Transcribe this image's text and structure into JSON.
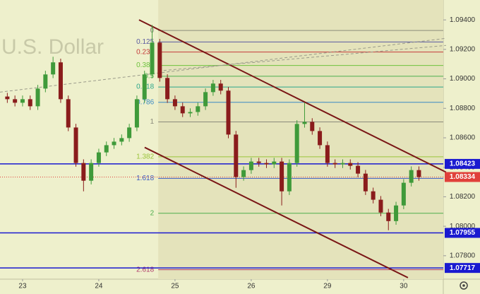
{
  "chart_data": {
    "type": "candlestick",
    "watermark": "U.S. Dollar",
    "xlim": [
      -2.96,
      55.2
    ],
    "ylim": [
      1.07641,
      1.09535
    ],
    "xticks": [
      {
        "value": 0,
        "label": "23"
      },
      {
        "value": 10,
        "label": "24"
      },
      {
        "value": 20,
        "label": "25"
      },
      {
        "value": 30,
        "label": "26"
      },
      {
        "value": 40,
        "label": "29"
      },
      {
        "value": 50,
        "label": "30"
      }
    ],
    "yticks": [
      {
        "value": 1.078,
        "label": "1.07800"
      },
      {
        "value": 1.08,
        "label": "1.08000"
      },
      {
        "value": 1.082,
        "label": "1.08200"
      },
      {
        "value": 1.084,
        "label": "1.08400"
      },
      {
        "value": 1.086,
        "label": "1.08600"
      },
      {
        "value": 1.088,
        "label": "1.08800"
      },
      {
        "value": 1.09,
        "label": "1.09000"
      },
      {
        "value": 1.092,
        "label": "1.09200"
      },
      {
        "value": 1.094,
        "label": "1.09400"
      }
    ],
    "up_color": "#3f9a3a",
    "down_color": "#8a1c1c",
    "candles": {
      "x": [
        -2,
        -1,
        0,
        1,
        2,
        3,
        4,
        5,
        6,
        7,
        8,
        9,
        10,
        11,
        12,
        13,
        14,
        15,
        16,
        17,
        18,
        19,
        20,
        21,
        22,
        23,
        24,
        25,
        26,
        27,
        28,
        29,
        30,
        31,
        32,
        33,
        34,
        35,
        36,
        37,
        38,
        39,
        40,
        41,
        42,
        43,
        44,
        45,
        46,
        47,
        48,
        49,
        50,
        51,
        52
      ],
      "open": [
        1.0888,
        1.08862,
        1.08838,
        1.08862,
        1.08814,
        1.08934,
        1.0903,
        1.09112,
        1.08862,
        1.0867,
        1.08429,
        1.08309,
        1.08429,
        1.08501,
        1.0855,
        1.08574,
        1.08598,
        1.0867,
        1.08862,
        1.0903,
        1.09246,
        1.09006,
        1.08862,
        1.08814,
        1.08766,
        1.08775,
        1.08814,
        1.0891,
        1.08968,
        1.0892,
        1.08622,
        1.08334,
        1.08381,
        1.08439,
        1.08429,
        1.0842,
        1.08439,
        1.08237,
        1.08429,
        1.08694,
        1.08708,
        1.08646,
        1.0855,
        1.08429,
        1.0842,
        1.08429,
        1.0841,
        1.08357,
        1.08237,
        1.0818,
        1.08093,
        1.08035,
        1.08141,
        1.08295,
        1.08381
      ],
      "high": [
        1.08905,
        1.08887,
        1.08887,
        1.08887,
        1.08959,
        1.09055,
        1.0915,
        1.09137,
        1.08887,
        1.08695,
        1.08454,
        1.08454,
        1.08526,
        1.08575,
        1.08599,
        1.08623,
        1.08695,
        1.08887,
        1.09055,
        1.09366,
        1.09271,
        1.09031,
        1.08887,
        1.08839,
        1.088,
        1.08839,
        1.08935,
        1.08993,
        1.08993,
        1.08945,
        1.08647,
        1.08406,
        1.08464,
        1.08464,
        1.08454,
        1.08464,
        1.08464,
        1.08454,
        1.08719,
        1.08838,
        1.08733,
        1.08671,
        1.08575,
        1.08454,
        1.08454,
        1.08454,
        1.08435,
        1.08382,
        1.08262,
        1.08205,
        1.08118,
        1.08166,
        1.0832,
        1.08406,
        1.08406
      ],
      "low": [
        1.08837,
        1.08813,
        1.08813,
        1.08789,
        1.08789,
        1.08909,
        1.09005,
        1.08837,
        1.08645,
        1.08404,
        1.08237,
        1.08284,
        1.08404,
        1.08476,
        1.08525,
        1.08549,
        1.08573,
        1.08645,
        1.08837,
        1.09005,
        1.08981,
        1.08837,
        1.08789,
        1.08741,
        1.08741,
        1.0875,
        1.08789,
        1.08885,
        1.08895,
        1.08597,
        1.08261,
        1.08309,
        1.08356,
        1.08404,
        1.08395,
        1.08395,
        1.08141,
        1.08212,
        1.08404,
        1.08669,
        1.08621,
        1.08525,
        1.08404,
        1.08395,
        1.08395,
        1.08385,
        1.08332,
        1.08212,
        1.08155,
        1.08068,
        1.07973,
        1.0801,
        1.08116,
        1.0827,
        1.08309
      ],
      "close": [
        1.08862,
        1.08838,
        1.08862,
        1.08814,
        1.08934,
        1.0903,
        1.09112,
        1.08862,
        1.0867,
        1.08429,
        1.08309,
        1.08429,
        1.08501,
        1.0855,
        1.08574,
        1.08598,
        1.0867,
        1.08862,
        1.0903,
        1.09246,
        1.09006,
        1.08862,
        1.08814,
        1.08766,
        1.08775,
        1.08814,
        1.0891,
        1.08968,
        1.0892,
        1.08622,
        1.08334,
        1.08381,
        1.08439,
        1.08429,
        1.0842,
        1.08439,
        1.08237,
        1.08429,
        1.08694,
        1.08708,
        1.08646,
        1.0855,
        1.08429,
        1.0842,
        1.08429,
        1.0841,
        1.08357,
        1.08237,
        1.0818,
        1.08093,
        1.08035,
        1.08141,
        1.08295,
        1.08381,
        1.08334
      ]
    },
    "fib": {
      "x0": 17.8,
      "start": 1.09328,
      "end": 1.08708,
      "levels": [
        {
          "value": 0,
          "color": "#8a8a7a"
        },
        {
          "value": 0.125,
          "color": "#5a5aa0"
        },
        {
          "value": 0.236,
          "color": "#c43a3a"
        },
        {
          "value": 0.382,
          "color": "#6ec23c"
        },
        {
          "value": 0.5,
          "color": "#4cae4c"
        },
        {
          "value": 0.618,
          "color": "#2aa68a"
        },
        {
          "value": 0.786,
          "color": "#3a8ac4"
        },
        {
          "value": 1,
          "color": "#8a8a7a"
        },
        {
          "value": 1.382,
          "color": "#9ac43a"
        },
        {
          "value": 1.618,
          "color": "#3a5ac4"
        },
        {
          "value": 2,
          "color": "#4cae4c"
        },
        {
          "value": 2.618,
          "color": "#b03a6a"
        }
      ]
    },
    "price_lines": [
      {
        "value": 1.08423,
        "color": "#1a1ad0",
        "dash": false
      },
      {
        "value": 1.08334,
        "color": "#e0403a",
        "dash": true
      },
      {
        "value": 1.07955,
        "color": "#1a1ad0",
        "dash": false
      },
      {
        "value": 1.07717,
        "color": "#1a1ad0",
        "dash": false
      }
    ],
    "trend_lines": [
      {
        "x": [
          15.28,
          55.56
        ],
        "y": [
          1.094,
          1.08367
        ],
        "color": "#7a1616",
        "dash": false
      },
      {
        "x": [
          16.02,
          50.56
        ],
        "y": [
          1.08535,
          1.07651
        ],
        "color": "#7a1616",
        "dash": false
      },
      {
        "x": [
          -2.96,
          55.56
        ],
        "y": [
          1.0891,
          1.09275
        ],
        "color": "#9a9a8a",
        "dash": true
      },
      {
        "x": [
          17.87,
          55.56
        ],
        "y": [
          1.09054,
          1.09227
        ],
        "color": "#9a9a8a",
        "dash": true
      }
    ]
  }
}
